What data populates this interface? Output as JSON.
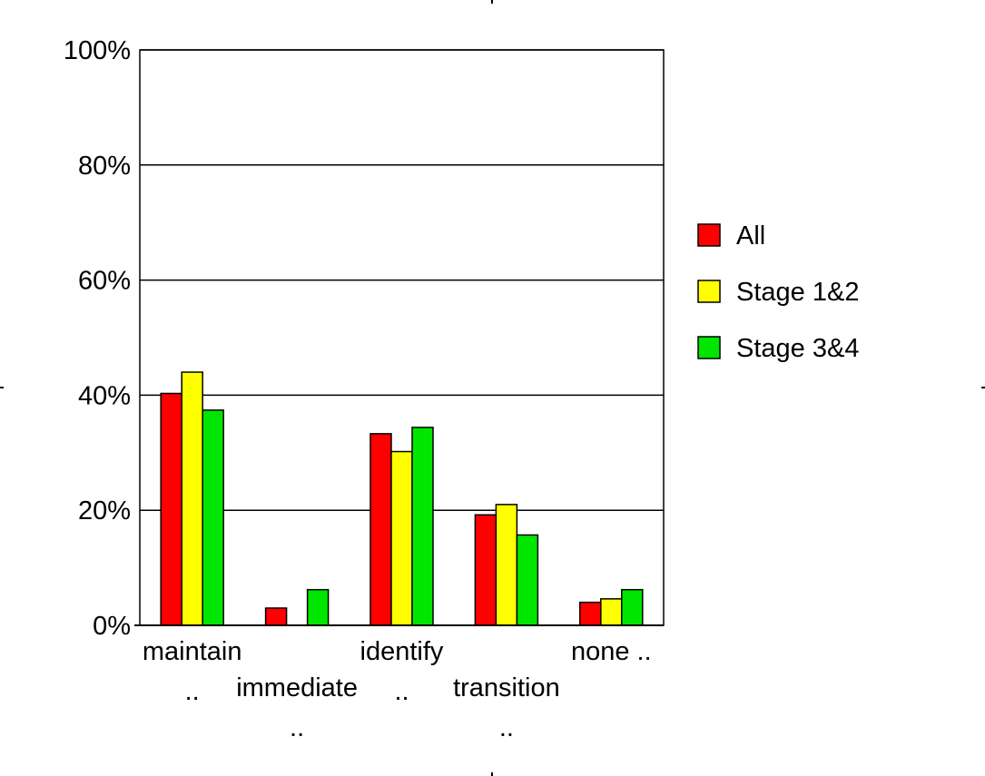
{
  "chart_data": {
    "type": "bar",
    "title": "",
    "xlabel": "",
    "ylabel": "",
    "ylim": [
      0,
      100
    ],
    "yticks": [
      "0%",
      "20%",
      "40%",
      "60%",
      "80%",
      "100%"
    ],
    "grid": true,
    "legend_position": "right",
    "categories": [
      [
        "maintain",
        ".."
      ],
      [
        "immediate",
        ".."
      ],
      [
        "identify",
        ".."
      ],
      [
        "transition",
        ".."
      ],
      [
        "none .."
      ]
    ],
    "series": [
      {
        "name": "All",
        "color": "#ff0000",
        "values": [
          40.3,
          3,
          33.3,
          19.2,
          4
        ]
      },
      {
        "name": "Stage 1&2",
        "color": "#ffff00",
        "values": [
          44,
          0,
          30.2,
          21,
          4.6
        ]
      },
      {
        "name": "Stage 3&4",
        "color": "#00e600",
        "values": [
          37.4,
          6.2,
          34.4,
          15.7,
          6.2
        ]
      }
    ]
  }
}
